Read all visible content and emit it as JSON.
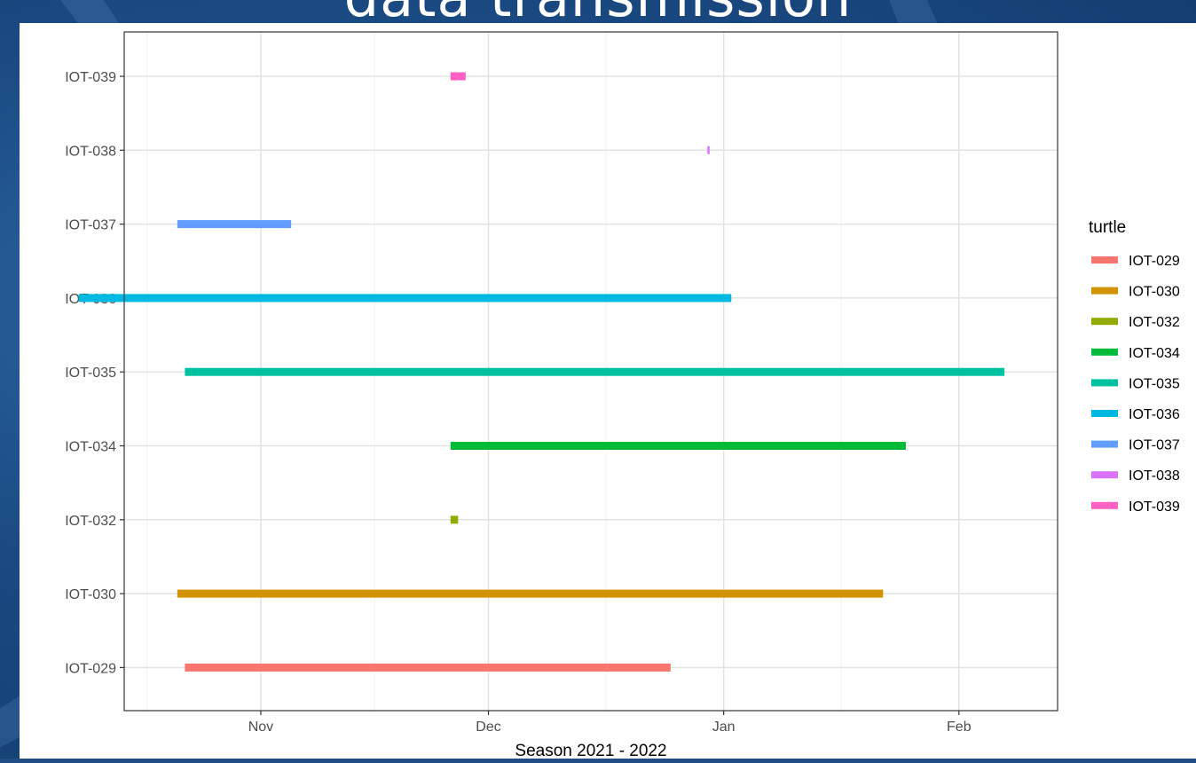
{
  "slide": {
    "title": "data transmission"
  },
  "chart_data": {
    "type": "gantt",
    "xlabel": "Season 2021 - 2022",
    "ylabel": "",
    "x_ticks": [
      "Nov",
      "Dec",
      "Jan",
      "Feb"
    ],
    "x_tick_dates": [
      "2021-11-01",
      "2021-12-01",
      "2022-01-01",
      "2022-02-01"
    ],
    "xlim": [
      "2021-10-14",
      "2022-02-14"
    ],
    "grid": true,
    "legend": {
      "title": "turtle",
      "position": "right"
    },
    "series": [
      {
        "name": "IOT-029",
        "color": "#F8766D",
        "start": "2021-10-22",
        "end": "2021-12-25"
      },
      {
        "name": "IOT-030",
        "color": "#D39200",
        "start": "2021-10-21",
        "end": "2022-01-22"
      },
      {
        "name": "IOT-032",
        "color": "#93AA00",
        "start": "2021-11-26",
        "end": "2021-11-27"
      },
      {
        "name": "IOT-034",
        "color": "#00BA38",
        "start": "2021-11-26",
        "end": "2022-01-25"
      },
      {
        "name": "IOT-035",
        "color": "#00C19F",
        "start": "2021-10-22",
        "end": "2022-02-07"
      },
      {
        "name": "IOT-036",
        "color": "#00B9E3",
        "start": "2021-10-08",
        "end": "2022-01-02"
      },
      {
        "name": "IOT-037",
        "color": "#619CFF",
        "start": "2021-10-21",
        "end": "2021-11-05"
      },
      {
        "name": "IOT-038",
        "color": "#DB72FB",
        "start": "2021-12-30",
        "end": "2021-12-30"
      },
      {
        "name": "IOT-039",
        "color": "#FF61C3",
        "start": "2021-11-26",
        "end": "2021-11-28"
      }
    ]
  }
}
